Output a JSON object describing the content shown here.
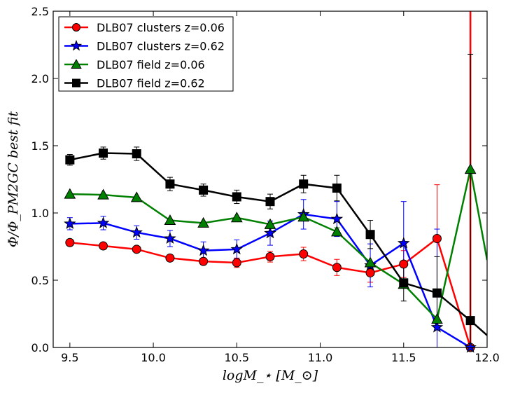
{
  "chart_data": {
    "type": "line",
    "title": "",
    "xlabel": "logM_⋆     [M_⊙]",
    "ylabel": "Φ/Φ_PM2GC best fit",
    "xlim": [
      9.4,
      12.0
    ],
    "ylim": [
      0.0,
      2.5
    ],
    "xticks": [
      "9.5",
      "10.0",
      "10.5",
      "11.0",
      "11.5",
      "12.0"
    ],
    "xtick_values": [
      9.5,
      10.0,
      10.5,
      11.0,
      11.5,
      12.0
    ],
    "yticks": [
      "0.0",
      "0.5",
      "1.0",
      "1.5",
      "2.0",
      "2.5"
    ],
    "ytick_values": [
      0.0,
      0.5,
      1.0,
      1.5,
      2.0,
      2.5
    ],
    "grid": false,
    "legend_position": "top-left",
    "x": [
      9.5,
      9.7,
      9.9,
      10.1,
      10.3,
      10.5,
      10.7,
      10.9,
      11.1,
      11.3,
      11.5,
      11.7,
      11.9
    ],
    "series": [
      {
        "name": "DLB07 clusters z=0.06",
        "color": "#ff0000",
        "marker": "circle",
        "values": [
          0.78,
          0.755,
          0.73,
          0.665,
          0.64,
          0.63,
          0.675,
          0.695,
          0.595,
          0.555,
          0.62,
          0.81,
          0.0
        ],
        "errors": [
          0.015,
          0.015,
          0.02,
          0.02,
          0.02,
          0.035,
          0.04,
          0.05,
          0.06,
          0.07,
          0.1,
          0.4,
          4.0
        ],
        "after_last": {
          "x": 11.9,
          "y": 2.5
        }
      },
      {
        "name": "DLB07 clusters z=0.62",
        "color": "#0000ff",
        "marker": "star",
        "values": [
          0.92,
          0.925,
          0.855,
          0.81,
          0.72,
          0.73,
          0.85,
          0.99,
          0.955,
          0.61,
          0.775,
          0.15,
          0.0
        ],
        "errors": [
          0.045,
          0.05,
          0.05,
          0.06,
          0.065,
          0.07,
          0.09,
          0.11,
          0.13,
          0.16,
          0.31,
          0.73,
          0.0
        ]
      },
      {
        "name": "DLB07 field z=0.06",
        "color": "#008000",
        "marker": "triangle",
        "values": [
          1.14,
          1.135,
          1.115,
          0.945,
          0.925,
          0.965,
          0.915,
          0.97,
          0.86,
          0.63,
          0.47,
          0.21,
          1.325
        ],
        "errors": [
          0,
          0,
          0,
          0,
          0,
          0,
          0,
          0,
          0.03,
          0,
          0,
          0,
          0
        ],
        "after_last": {
          "x": 12.0,
          "y": 0.65
        }
      },
      {
        "name": "DLB07 field z=0.62",
        "color": "#000000",
        "marker": "square",
        "values": [
          1.395,
          1.445,
          1.44,
          1.215,
          1.17,
          1.12,
          1.085,
          1.215,
          1.185,
          0.84,
          0.48,
          0.405,
          0.2
        ],
        "errors": [
          0.04,
          0.045,
          0.05,
          0.05,
          0.045,
          0.05,
          0.055,
          0.065,
          0.095,
          0.105,
          0.135,
          0.27,
          1.98
        ],
        "after_last": {
          "x": 12.0,
          "y": 0.09
        }
      }
    ]
  }
}
